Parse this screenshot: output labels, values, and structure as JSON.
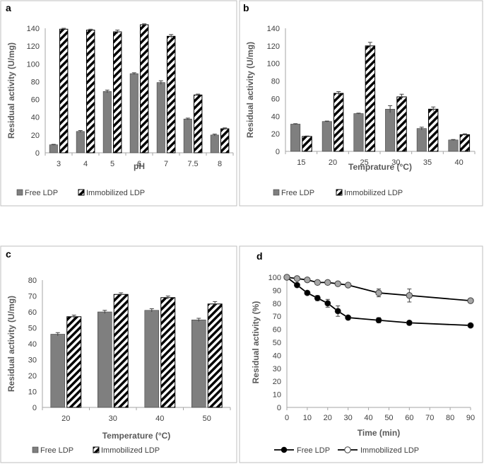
{
  "colors": {
    "free": "#7f7f7f",
    "line": "#000000",
    "immobilized_marker": "#a6a6a6"
  },
  "chart_data": [
    {
      "id": "a",
      "panel_label": "a",
      "type": "bar",
      "categories": [
        "3",
        "4",
        "5",
        "6",
        "7",
        "7.5",
        "8"
      ],
      "series": [
        {
          "name": "Free LDP",
          "values": [
            9,
            24,
            69,
            89,
            79,
            38,
            20
          ],
          "errors": [
            0.5,
            1,
            1.5,
            1,
            2,
            1,
            1
          ]
        },
        {
          "name": "Immobilized LDP",
          "values": [
            139,
            138,
            136,
            144,
            131,
            65,
            27
          ],
          "errors": [
            1,
            1,
            2,
            1,
            2,
            1,
            1
          ]
        }
      ],
      "xlabel": "pH",
      "ylabel": "Residual activity (U/mg)",
      "ylim": [
        0,
        140
      ],
      "yticks": [
        "0",
        "20",
        "40",
        "60",
        "80",
        "100",
        "120",
        "140"
      ],
      "grid": false,
      "legend": [
        "Free LDP",
        "Immobilized LDP"
      ]
    },
    {
      "id": "b",
      "panel_label": "b",
      "type": "bar",
      "categories": [
        "15",
        "20",
        "25",
        "30",
        "35",
        "40"
      ],
      "series": [
        {
          "name": "Free LDP",
          "values": [
            31,
            34,
            43,
            48,
            26,
            13
          ],
          "errors": [
            0.5,
            0.5,
            0.5,
            4,
            1.5,
            0.5
          ]
        },
        {
          "name": "Immobilized LDP",
          "values": [
            17,
            66,
            120,
            62,
            48,
            19
          ],
          "errors": [
            0.5,
            2,
            4,
            3,
            2.5,
            1
          ]
        }
      ],
      "xlabel": "Temprature (°C)",
      "ylabel": "Residual activity (U/mg)",
      "ylim": [
        0,
        140
      ],
      "yticks": [
        "0",
        "20",
        "40",
        "60",
        "80",
        "100",
        "120",
        "140"
      ],
      "grid": false,
      "legend": [
        "Free LDP",
        "Immobilized LDP"
      ]
    },
    {
      "id": "c",
      "panel_label": "c",
      "type": "bar",
      "categories": [
        "20",
        "30",
        "40",
        "50"
      ],
      "series": [
        {
          "name": "Free LDP",
          "values": [
            46,
            60,
            61,
            55
          ],
          "errors": [
            1,
            1,
            1,
            1
          ]
        },
        {
          "name": "Immobilized LDP",
          "values": [
            57,
            71,
            69,
            65
          ],
          "errors": [
            1,
            1,
            1,
            1.5
          ]
        }
      ],
      "xlabel": "Temperature (°C)",
      "ylabel": "Residual activity (U/mg)",
      "ylim": [
        0,
        80
      ],
      "yticks": [
        "0",
        "10",
        "20",
        "30",
        "40",
        "50",
        "60",
        "70",
        "80"
      ],
      "grid": false,
      "legend": [
        "Free LDP",
        "Immobilized LDP"
      ]
    },
    {
      "id": "d",
      "panel_label": "d",
      "type": "line",
      "x": [
        0,
        5,
        10,
        15,
        20,
        25,
        30,
        45,
        60,
        90
      ],
      "series": [
        {
          "name": "Free LDP",
          "values": [
            100,
            94,
            88,
            84,
            80,
            74,
            69,
            67,
            65,
            63
          ],
          "errors": [
            0,
            1,
            1.5,
            2,
            3,
            4,
            1,
            2,
            1,
            1
          ]
        },
        {
          "name": "Immobilized LDP",
          "values": [
            100,
            99,
            98,
            96,
            96,
            95,
            94,
            88,
            86,
            82
          ],
          "errors": [
            0,
            1,
            1,
            1,
            1,
            1,
            1,
            3,
            5,
            1
          ]
        }
      ],
      "xlabel": "Time (min)",
      "ylabel": "Residual activity (%)",
      "xlim": [
        0,
        90
      ],
      "xticks": [
        "0",
        "10",
        "20",
        "30",
        "40",
        "50",
        "60",
        "70",
        "80",
        "90"
      ],
      "ylim": [
        0,
        100
      ],
      "yticks": [
        "0",
        "10",
        "20",
        "30",
        "40",
        "50",
        "60",
        "70",
        "80",
        "90",
        "100"
      ],
      "grid": false,
      "legend": [
        "Free LDP",
        "Immobilized LDP"
      ]
    }
  ]
}
